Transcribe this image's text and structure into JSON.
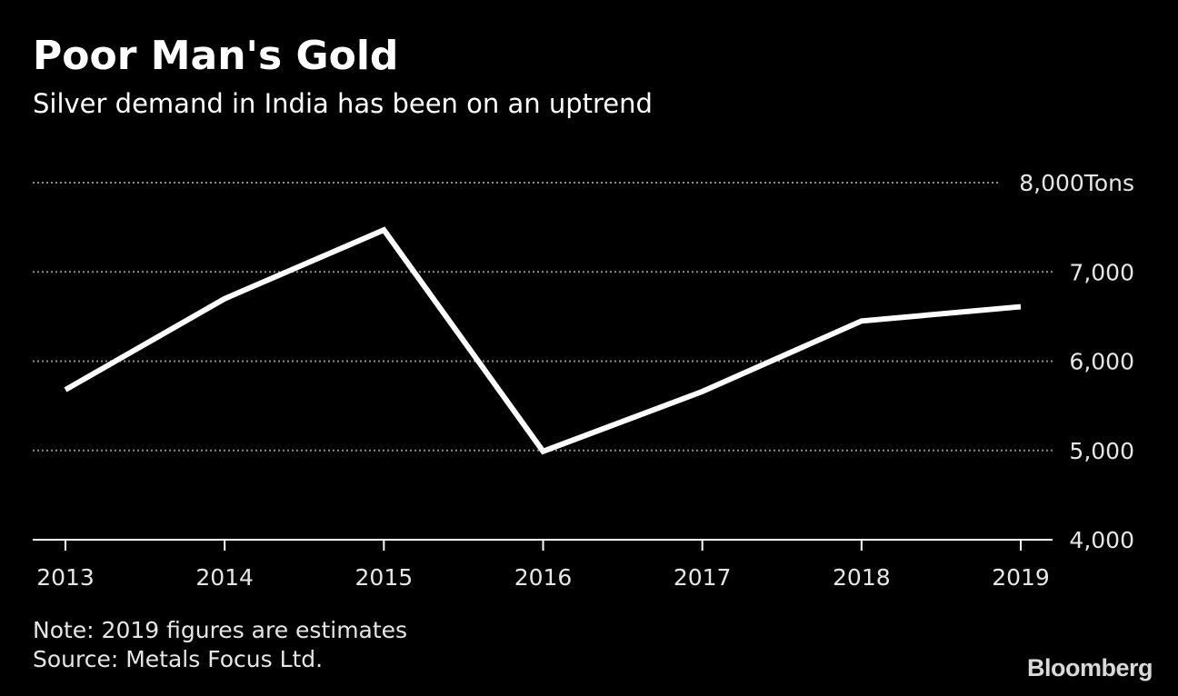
{
  "header": {
    "title": "Poor Man's Gold",
    "subtitle": "Silver demand in India has been on an uptrend"
  },
  "footer": {
    "note": "Note: 2019 figures are estimates",
    "source": "Source: Metals Focus Ltd.",
    "brand": "Bloomberg"
  },
  "colors": {
    "background": "#000000",
    "line": "#ffffff",
    "gridline": "#8c8c8c",
    "text": "#e6e6e6"
  },
  "chart_data": {
    "type": "line",
    "title": "Poor Man's Gold",
    "subtitle": "Silver demand in India has been on an uptrend",
    "xlabel": "",
    "ylabel": "",
    "y_unit": "Tons",
    "x": [
      "2013",
      "2014",
      "2015",
      "2016",
      "2017",
      "2018",
      "2019"
    ],
    "series": [
      {
        "values": [
          5680,
          6700,
          7470,
          4990,
          5660,
          6450,
          6610
        ]
      }
    ],
    "ylim": [
      4000,
      8000
    ],
    "y_ticks": [
      4000,
      5000,
      6000,
      7000,
      8000
    ],
    "y_tick_labels": [
      "4,000",
      "5,000",
      "6,000",
      "7,000",
      "8,000"
    ],
    "y_axis_side": "right",
    "grid": "horizontal-dotted",
    "legend": "none"
  }
}
